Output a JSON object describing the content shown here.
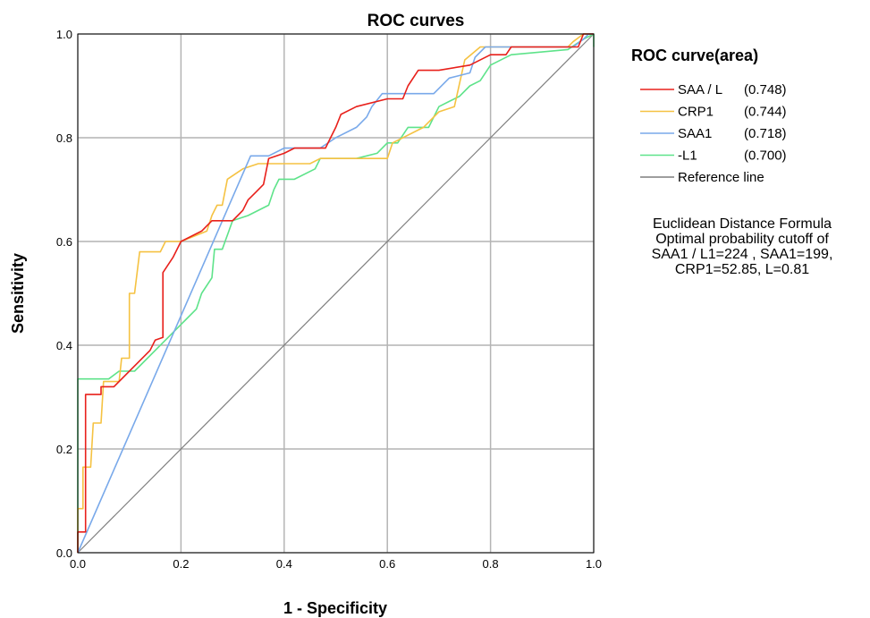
{
  "chart_data": {
    "type": "line",
    "title": "ROC curves",
    "xlabel": "1 - Specificity",
    "ylabel": "Sensitivity",
    "xlim": [
      0.0,
      1.0
    ],
    "ylim": [
      0.0,
      1.0
    ],
    "xticks": [
      "0.0",
      "0.2",
      "0.4",
      "0.6",
      "0.8",
      "1.0"
    ],
    "yticks": [
      "0.0",
      "0.2",
      "0.4",
      "0.6",
      "0.8",
      "1.0"
    ],
    "grid": true,
    "legend": {
      "title": "ROC curve(area)",
      "placement": "right",
      "entries": [
        {
          "label": "SAA / L",
          "area": "(0.748)"
        },
        {
          "label": "CRP1",
          "area": "(0.744)"
        },
        {
          "label": "SAA1",
          "area": "(0.718)"
        },
        {
          "label": "-L1",
          "area": "(0.700)"
        },
        {
          "label": "Reference line",
          "area": ""
        }
      ]
    },
    "annotation": [
      "Euclidean Distance Formula",
      "Optimal probability cutoff of",
      "SAA1 / L1=224 , SAA1=199,",
      "CRP1=52.85, L=0.81"
    ],
    "series": [
      {
        "name": "SAA / L",
        "color": "#e8201b",
        "points": [
          [
            0,
            0
          ],
          [
            0,
            0.04
          ],
          [
            0.015,
            0.04
          ],
          [
            0.015,
            0.305
          ],
          [
            0.045,
            0.305
          ],
          [
            0.045,
            0.32
          ],
          [
            0.07,
            0.32
          ],
          [
            0.14,
            0.39
          ],
          [
            0.15,
            0.41
          ],
          [
            0.165,
            0.415
          ],
          [
            0.165,
            0.54
          ],
          [
            0.185,
            0.57
          ],
          [
            0.2,
            0.6
          ],
          [
            0.24,
            0.62
          ],
          [
            0.26,
            0.64
          ],
          [
            0.3,
            0.64
          ],
          [
            0.31,
            0.65
          ],
          [
            0.32,
            0.66
          ],
          [
            0.33,
            0.68
          ],
          [
            0.345,
            0.695
          ],
          [
            0.36,
            0.71
          ],
          [
            0.37,
            0.76
          ],
          [
            0.4,
            0.77
          ],
          [
            0.42,
            0.78
          ],
          [
            0.48,
            0.78
          ],
          [
            0.49,
            0.8
          ],
          [
            0.5,
            0.82
          ],
          [
            0.51,
            0.845
          ],
          [
            0.54,
            0.86
          ],
          [
            0.6,
            0.875
          ],
          [
            0.63,
            0.875
          ],
          [
            0.64,
            0.9
          ],
          [
            0.66,
            0.93
          ],
          [
            0.7,
            0.93
          ],
          [
            0.76,
            0.94
          ],
          [
            0.8,
            0.96
          ],
          [
            0.83,
            0.96
          ],
          [
            0.84,
            0.975
          ],
          [
            0.97,
            0.975
          ],
          [
            0.98,
            1.0
          ],
          [
            1.0,
            1.0
          ]
        ]
      },
      {
        "name": "CRP1",
        "color": "#f5c242",
        "points": [
          [
            0,
            0
          ],
          [
            0,
            0.085
          ],
          [
            0.01,
            0.085
          ],
          [
            0.01,
            0.165
          ],
          [
            0.025,
            0.165
          ],
          [
            0.03,
            0.25
          ],
          [
            0.045,
            0.25
          ],
          [
            0.05,
            0.33
          ],
          [
            0.08,
            0.33
          ],
          [
            0.085,
            0.375
          ],
          [
            0.1,
            0.375
          ],
          [
            0.1,
            0.5
          ],
          [
            0.11,
            0.5
          ],
          [
            0.12,
            0.58
          ],
          [
            0.16,
            0.58
          ],
          [
            0.17,
            0.6
          ],
          [
            0.2,
            0.6
          ],
          [
            0.25,
            0.62
          ],
          [
            0.26,
            0.65
          ],
          [
            0.27,
            0.67
          ],
          [
            0.28,
            0.67
          ],
          [
            0.29,
            0.72
          ],
          [
            0.32,
            0.74
          ],
          [
            0.35,
            0.75
          ],
          [
            0.45,
            0.75
          ],
          [
            0.47,
            0.76
          ],
          [
            0.6,
            0.76
          ],
          [
            0.61,
            0.79
          ],
          [
            0.67,
            0.82
          ],
          [
            0.7,
            0.85
          ],
          [
            0.73,
            0.86
          ],
          [
            0.75,
            0.95
          ],
          [
            0.78,
            0.975
          ],
          [
            0.95,
            0.975
          ],
          [
            0.96,
            0.985
          ],
          [
            0.98,
            1.0
          ],
          [
            1.0,
            1.0
          ]
        ]
      },
      {
        "name": "SAA1",
        "color": "#79a9ea",
        "points": [
          [
            0,
            0
          ],
          [
            0.335,
            0.765
          ],
          [
            0.37,
            0.765
          ],
          [
            0.4,
            0.78
          ],
          [
            0.47,
            0.78
          ],
          [
            0.5,
            0.8
          ],
          [
            0.54,
            0.82
          ],
          [
            0.56,
            0.84
          ],
          [
            0.57,
            0.86
          ],
          [
            0.59,
            0.885
          ],
          [
            0.69,
            0.885
          ],
          [
            0.72,
            0.915
          ],
          [
            0.76,
            0.925
          ],
          [
            0.77,
            0.955
          ],
          [
            0.79,
            0.975
          ],
          [
            0.96,
            0.975
          ],
          [
            0.98,
            0.99
          ],
          [
            0.99,
            1.0
          ],
          [
            1.0,
            1.0
          ]
        ]
      },
      {
        "name": "-L1",
        "color": "#5ee38a",
        "points": [
          [
            0,
            0
          ],
          [
            0,
            0.335
          ],
          [
            0.06,
            0.335
          ],
          [
            0.08,
            0.35
          ],
          [
            0.11,
            0.35
          ],
          [
            0.2,
            0.44
          ],
          [
            0.21,
            0.45
          ],
          [
            0.23,
            0.47
          ],
          [
            0.24,
            0.5
          ],
          [
            0.26,
            0.53
          ],
          [
            0.265,
            0.585
          ],
          [
            0.28,
            0.585
          ],
          [
            0.3,
            0.64
          ],
          [
            0.33,
            0.65
          ],
          [
            0.37,
            0.67
          ],
          [
            0.38,
            0.7
          ],
          [
            0.39,
            0.72
          ],
          [
            0.42,
            0.72
          ],
          [
            0.46,
            0.74
          ],
          [
            0.47,
            0.76
          ],
          [
            0.54,
            0.76
          ],
          [
            0.58,
            0.77
          ],
          [
            0.6,
            0.79
          ],
          [
            0.62,
            0.79
          ],
          [
            0.64,
            0.82
          ],
          [
            0.68,
            0.82
          ],
          [
            0.7,
            0.86
          ],
          [
            0.72,
            0.87
          ],
          [
            0.74,
            0.88
          ],
          [
            0.76,
            0.9
          ],
          [
            0.78,
            0.91
          ],
          [
            0.8,
            0.94
          ],
          [
            0.84,
            0.96
          ],
          [
            0.95,
            0.97
          ],
          [
            0.98,
            0.99
          ],
          [
            1.0,
            1.0
          ],
          [
            1.0,
            0.975
          ]
        ]
      },
      {
        "name": "Reference line",
        "color": "#7f7f7f",
        "points": [
          [
            0,
            0
          ],
          [
            1,
            1
          ]
        ]
      }
    ]
  }
}
